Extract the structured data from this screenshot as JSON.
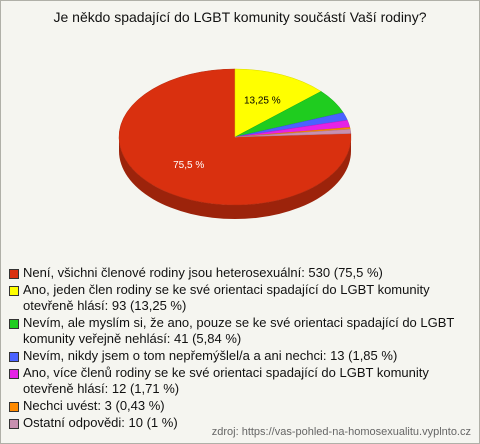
{
  "chart_data": {
    "type": "pie",
    "title": "Je někdo spadající do LGBT komunity součástí Vaší rodiny?",
    "categories": [
      "Není, všichni členové rodiny jsou heterosexuální: 530 (75,5 %)",
      "Ano, jeden člen rodiny se ke své orientaci spadající do LGBT komunity otevřeně hlásí: 93 (13,25 %)",
      "Nevím, ale myslím si, že ano, pouze se ke své orientaci spadající do LGBT komunity veřejně nehlásí: 41 (5,84 %)",
      "Nevím, nikdy jsem o tom nepřemýšlel/a a ani nechci: 13 (1,85 %)",
      "Ano, více členů rodiny se ke své orientaci spadající do LGBT komunity otevřeně hlásí: 12 (1,71 %)",
      "Nechci uvést: 3 (0,43 %)",
      "Ostatní odpovědi: 10 (1 %)"
    ],
    "values": [
      75.5,
      13.25,
      5.84,
      1.85,
      1.71,
      0.43,
      1
    ],
    "value_labels": [
      "75,5 %",
      "13,25 %",
      null,
      null,
      null,
      null,
      null
    ],
    "colors": [
      "#d9300f",
      "#ffff00",
      "#1fcc1f",
      "#4a62ff",
      "#e622e6",
      "#ff8a00",
      "#c890b0"
    ],
    "source": "zdroj: https://vas-pohled-na-homosexualitu.vyplnto.cz"
  }
}
